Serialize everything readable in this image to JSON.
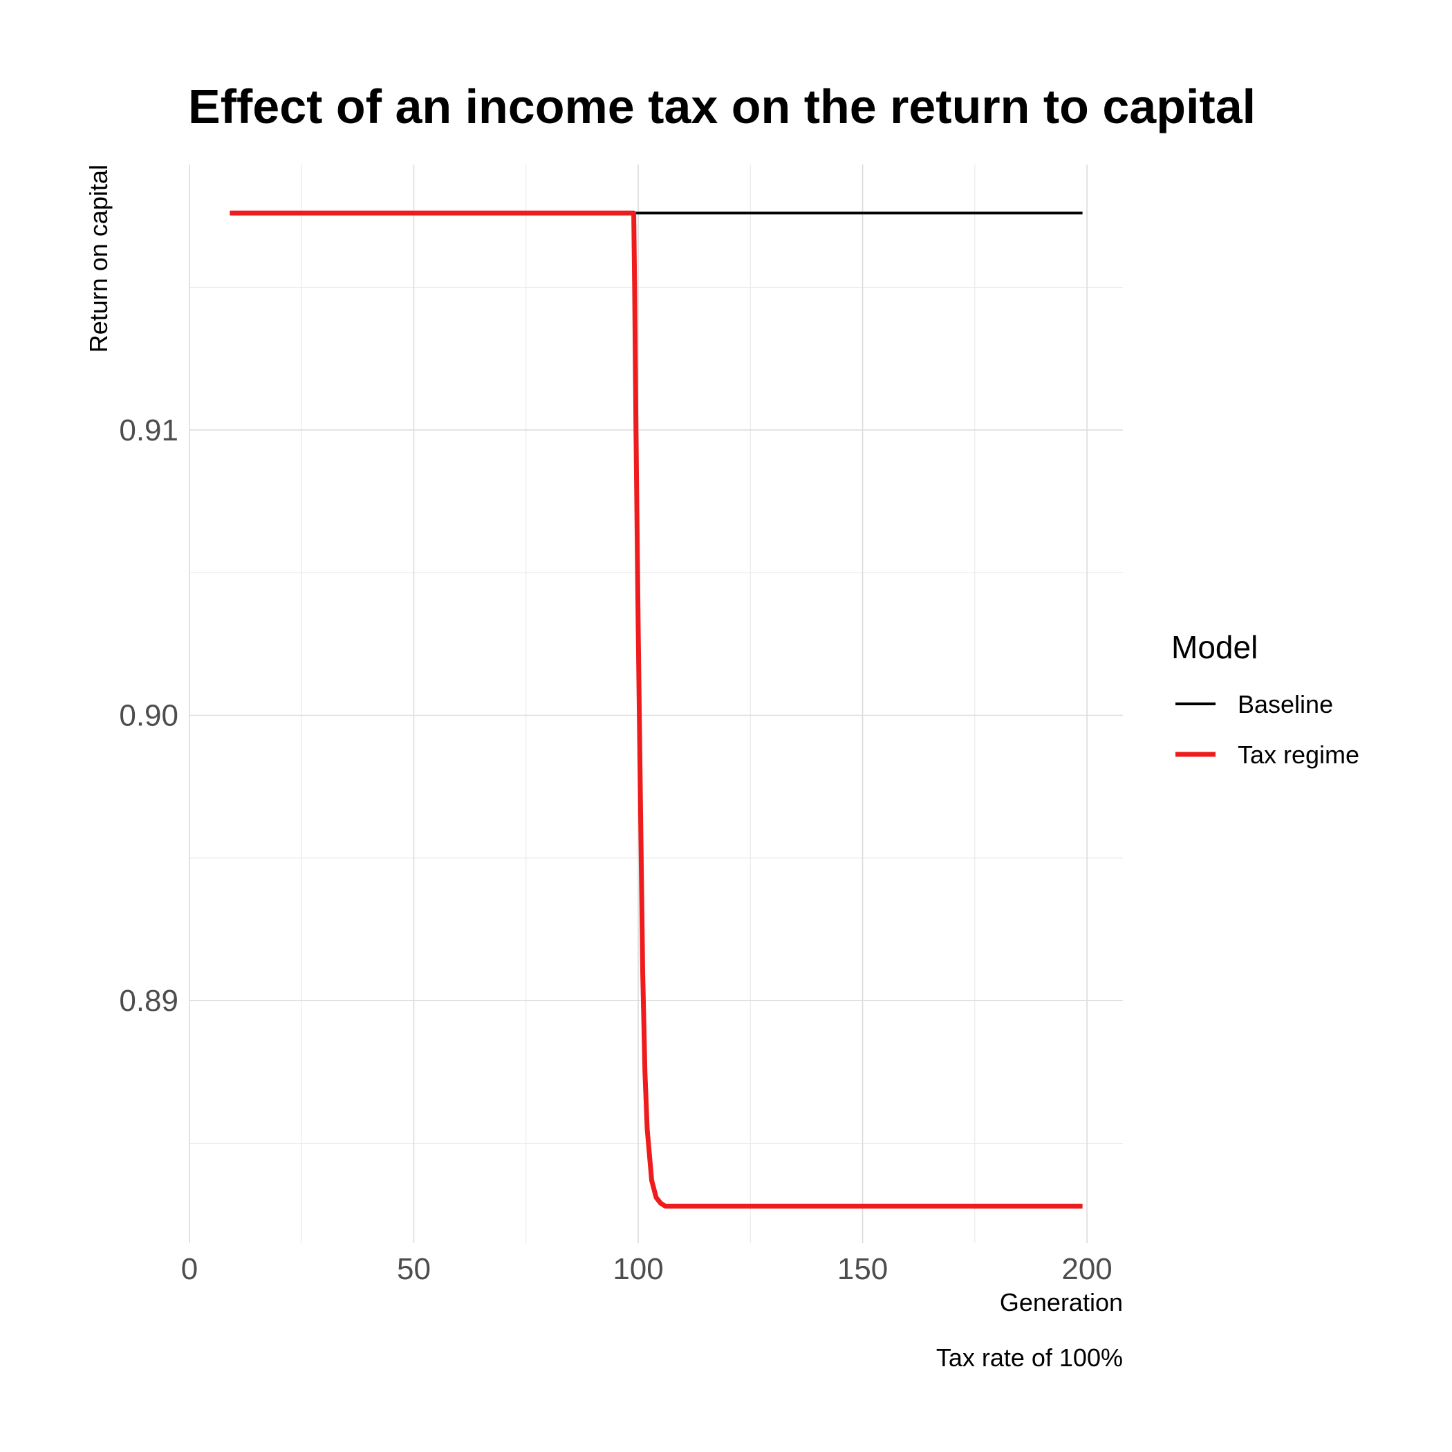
{
  "chart_data": {
    "type": "line",
    "title": "Effect of an income tax on the return to capital",
    "subtitle": "",
    "xlabel": "Generation",
    "ylabel": "Return on capital",
    "caption": "Tax rate of 100%",
    "xlim": [
      0,
      208
    ],
    "ylim": [
      0.8815,
      0.9193
    ],
    "x_ticks": [
      0,
      50,
      100,
      150,
      200
    ],
    "x_tick_labels": [
      "0",
      "50",
      "100",
      "150",
      "200"
    ],
    "y_ticks": [
      0.89,
      0.9,
      0.91
    ],
    "y_tick_labels": [
      "0.89",
      "0.90",
      "0.91"
    ],
    "grid": true,
    "legend": {
      "title": "Model",
      "position": "right"
    },
    "series": [
      {
        "name": "Baseline",
        "color": "#000000",
        "x": [
          9,
          199
        ],
        "y": [
          0.9176,
          0.9176
        ]
      },
      {
        "name": "Tax regime",
        "color": "#ee1c1c",
        "x": [
          9,
          99,
          99.2,
          99.5,
          100,
          100.5,
          101,
          101.5,
          102,
          103,
          104,
          105,
          106,
          199
        ],
        "y": [
          0.9176,
          0.9176,
          0.915,
          0.91,
          0.903,
          0.897,
          0.891,
          0.8875,
          0.8855,
          0.8837,
          0.8831,
          0.8829,
          0.8828,
          0.8828
        ]
      }
    ]
  }
}
